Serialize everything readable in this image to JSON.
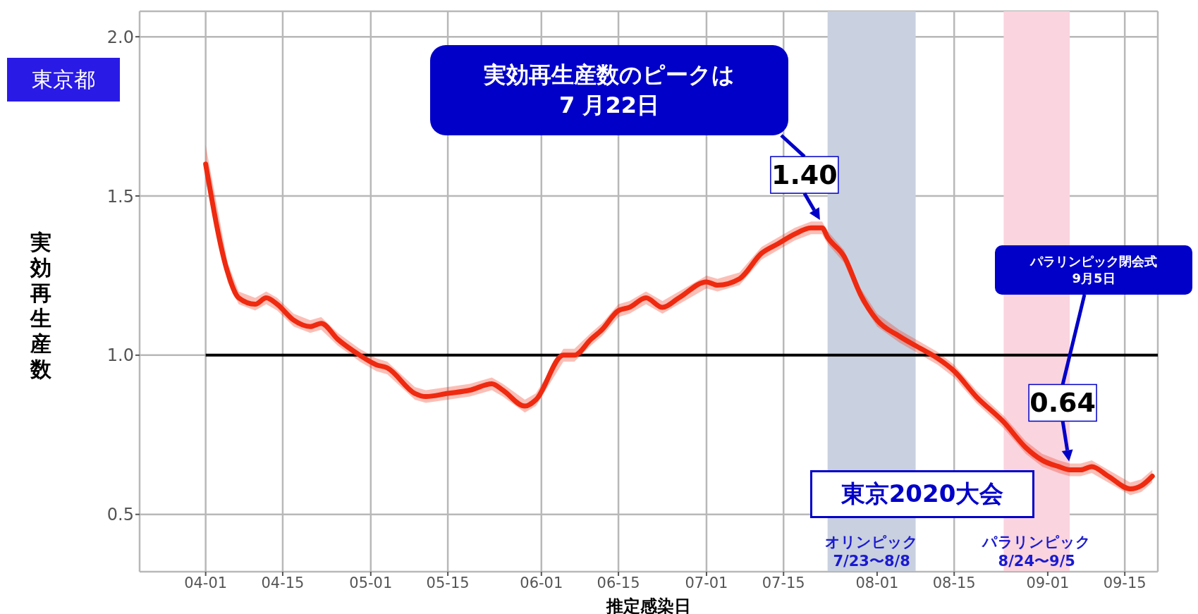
{
  "chart_data": {
    "type": "line",
    "xlabel": "推定感染日",
    "ylabel": "実効再生産数",
    "x": [
      "--04-01",
      "--04-05",
      "--04-07",
      "--04-10",
      "--04-12",
      "--04-14",
      "--04-17",
      "--04-20",
      "--04-22",
      "--04-25",
      "--04-29",
      "--05-02",
      "--05-04",
      "--05-09",
      "--05-11",
      "--05-15",
      "--05-19",
      "--05-23",
      "--05-25",
      "--05-29",
      "--05-31",
      "--06-05",
      "--06-07",
      "--06-10",
      "--06-12",
      "--06-15",
      "--06-17",
      "--06-20",
      "--06-23",
      "--06-26",
      "--07-01",
      "--07-03",
      "--07-07",
      "--07-11",
      "--07-14",
      "--07-17",
      "--07-20",
      "--07-22",
      "--07-23",
      "--07-26",
      "--07-29",
      "--08-01",
      "--08-05",
      "--08-09",
      "--08-12",
      "--08-15",
      "--08-19",
      "--08-24",
      "--08-28",
      "--08-31",
      "--09-03",
      "--09-05",
      "--09-07",
      "--09-09",
      "--09-12",
      "--09-16",
      "--09-18",
      "--09-20"
    ],
    "series": [
      {
        "color": "#ee2a10",
        "values": [
          1.6,
          1.26,
          1.18,
          1.16,
          1.18,
          1.16,
          1.11,
          1.09,
          1.1,
          1.05,
          1.0,
          0.97,
          0.96,
          0.88,
          0.87,
          0.88,
          0.89,
          0.91,
          0.89,
          0.84,
          0.86,
          1.0,
          1.0,
          1.05,
          1.08,
          1.14,
          1.15,
          1.18,
          1.15,
          1.18,
          1.23,
          1.22,
          1.24,
          1.32,
          1.35,
          1.38,
          1.4,
          1.4,
          1.37,
          1.31,
          1.19,
          1.11,
          1.06,
          1.02,
          0.99,
          0.95,
          0.87,
          0.79,
          0.71,
          0.67,
          0.65,
          0.64,
          0.64,
          0.65,
          0.62,
          0.58,
          0.59,
          0.62
        ],
        "lower": [
          1.55,
          1.23,
          1.16,
          1.14,
          1.16,
          1.14,
          1.09,
          1.07,
          1.08,
          1.03,
          0.98,
          0.95,
          0.94,
          0.86,
          0.85,
          0.86,
          0.87,
          0.89,
          0.87,
          0.82,
          0.84,
          0.98,
          0.98,
          1.03,
          1.06,
          1.12,
          1.13,
          1.16,
          1.13,
          1.16,
          1.21,
          1.2,
          1.22,
          1.3,
          1.33,
          1.36,
          1.38,
          1.38,
          1.35,
          1.29,
          1.17,
          1.09,
          1.04,
          1.0,
          0.97,
          0.93,
          0.85,
          0.77,
          0.69,
          0.65,
          0.63,
          0.62,
          0.62,
          0.63,
          0.6,
          0.56,
          0.57,
          0.6
        ],
        "upper": [
          1.66,
          1.29,
          1.2,
          1.18,
          1.2,
          1.18,
          1.13,
          1.11,
          1.12,
          1.07,
          1.02,
          0.99,
          0.98,
          0.9,
          0.89,
          0.9,
          0.91,
          0.93,
          0.91,
          0.86,
          0.88,
          1.02,
          1.02,
          1.07,
          1.1,
          1.16,
          1.17,
          1.2,
          1.17,
          1.2,
          1.25,
          1.24,
          1.26,
          1.34,
          1.37,
          1.4,
          1.42,
          1.42,
          1.39,
          1.33,
          1.21,
          1.13,
          1.08,
          1.04,
          1.01,
          0.97,
          0.89,
          0.81,
          0.73,
          0.69,
          0.67,
          0.66,
          0.66,
          0.67,
          0.64,
          0.6,
          0.61,
          0.64
        ]
      }
    ],
    "xlim": [
      "--03-20",
      "--09-21"
    ],
    "xticks": [
      {
        "value": "--04-01",
        "label": "04-01"
      },
      {
        "value": "--04-15",
        "label": "04-15"
      },
      {
        "value": "--05-01",
        "label": "05-01"
      },
      {
        "value": "--05-15",
        "label": "05-15"
      },
      {
        "value": "--06-01",
        "label": "06-01"
      },
      {
        "value": "--06-15",
        "label": "06-15"
      },
      {
        "value": "--07-01",
        "label": "07-01"
      },
      {
        "value": "--07-15",
        "label": "07-15"
      },
      {
        "value": "--08-01",
        "label": "08-01"
      },
      {
        "value": "--08-15",
        "label": "08-15"
      },
      {
        "value": "--09-01",
        "label": "09-01"
      },
      {
        "value": "--09-15",
        "label": "09-15"
      }
    ],
    "ylim": [
      0.32,
      2.08
    ],
    "yticks": [
      {
        "value": 0.5,
        "label": "0.5"
      },
      {
        "value": 1,
        "label": "1.0"
      },
      {
        "value": 1.5,
        "label": "1.5"
      },
      {
        "value": 2,
        "label": "2.0"
      }
    ],
    "grid": true,
    "legend": false,
    "ref_lines": [
      {
        "axis": "y",
        "value": 1,
        "color": "#000000"
      }
    ],
    "bands": [
      {
        "axis": "x",
        "from": "--07-23",
        "to": "--08-08",
        "label": "オリンピック\n7/23〜8/8",
        "color": "#c9d0df"
      },
      {
        "axis": "x",
        "from": "--08-24",
        "to": "--09-05",
        "label": "パラリンピック\n8/24〜9/5",
        "color": "#fad4de"
      }
    ],
    "annotations": [
      "東京都",
      "実効再生産数のピークは\n7 月22日",
      {
        "text": "1.40",
        "x": "--07-22",
        "y": 1.4
      },
      "パラリンピック閉会式\n9月5日",
      {
        "text": "0.64",
        "x": "--09-05",
        "y": 0.64
      },
      "東京2020大会"
    ]
  }
}
